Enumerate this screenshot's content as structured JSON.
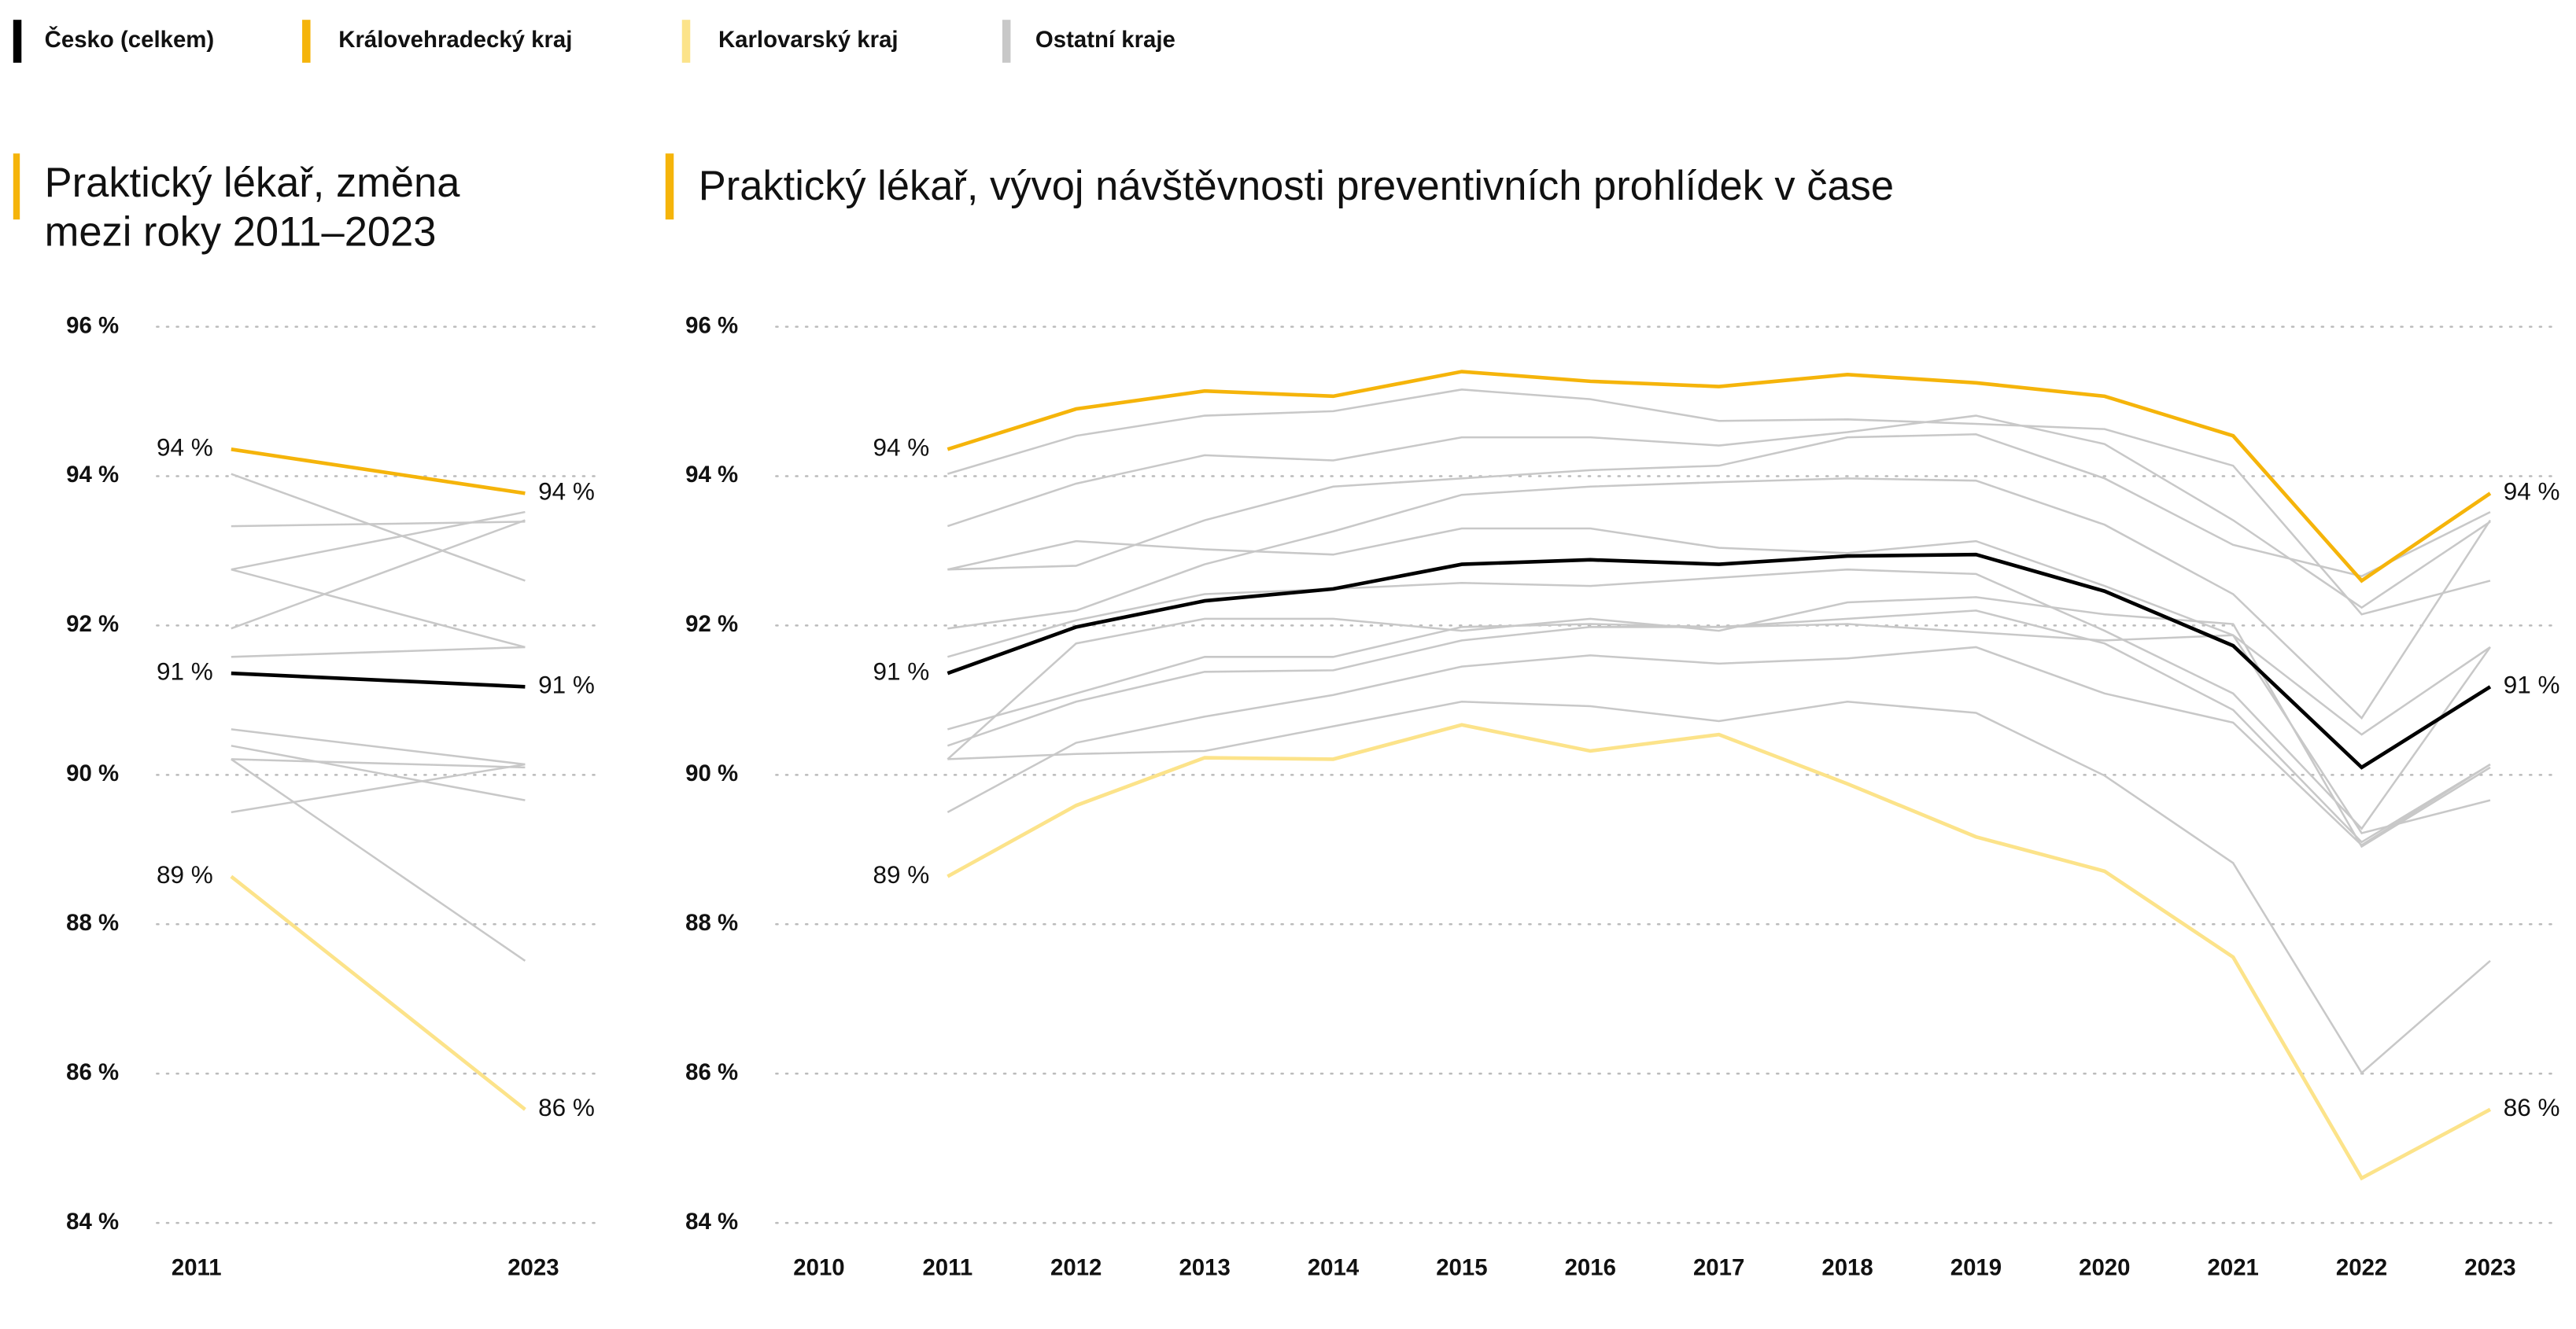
{
  "chart_data": [
    {
      "type": "slope",
      "title": "Praktický lékař, změna mezi roky 2011–2023",
      "categories": [
        "2011",
        "2023"
      ],
      "ylim": [
        84,
        96
      ],
      "yticks": [
        {
          "value": 84,
          "label": "84 %"
        },
        {
          "value": 86,
          "label": "86 %"
        },
        {
          "value": 88,
          "label": "88 %"
        },
        {
          "value": 90,
          "label": "90 %"
        },
        {
          "value": 92,
          "label": "92 %"
        },
        {
          "value": 94,
          "label": "94 %"
        },
        {
          "value": 96,
          "label": "96 %"
        }
      ],
      "grid": true,
      "other_series": {
        "name": "Ostatní kraje",
        "color": "#c8c8c8",
        "lines": [
          [
            94.03,
            92.6
          ],
          [
            93.33,
            93.39
          ],
          [
            92.75,
            93.52
          ],
          [
            92.75,
            91.71
          ],
          [
            91.96,
            93.41
          ],
          [
            91.58,
            91.71
          ],
          [
            90.21,
            90.1
          ],
          [
            90.61,
            90.14
          ],
          [
            90.39,
            89.66
          ],
          [
            90.21,
            87.51
          ],
          [
            89.5,
            90.14
          ]
        ]
      },
      "series": [
        {
          "name": "Karlovarský kraj",
          "color": "#fce38a",
          "values": [
            88.64,
            85.52
          ],
          "value_labels": [
            "89 %",
            "86 %"
          ]
        },
        {
          "name": "Královehradecký kraj",
          "color": "#f5b40a",
          "values": [
            94.36,
            93.77
          ],
          "value_labels": [
            "94 %",
            "94 %"
          ]
        },
        {
          "name": "Česko (celkem)",
          "color": "#000000",
          "values": [
            91.36,
            91.18
          ],
          "value_labels": [
            "91 %",
            "91 %"
          ]
        }
      ]
    },
    {
      "type": "line",
      "title": "Praktický lékař, vývoj návštěvnosti preventivních prohlídek v čase",
      "categories": [
        "2010",
        "2011",
        "2012",
        "2013",
        "2014",
        "2015",
        "2016",
        "2017",
        "2018",
        "2019",
        "2020",
        "2021",
        "2022",
        "2023"
      ],
      "ylim": [
        84,
        96
      ],
      "yticks": [
        {
          "value": 84,
          "label": "84 %"
        },
        {
          "value": 86,
          "label": "86 %"
        },
        {
          "value": 88,
          "label": "88 %"
        },
        {
          "value": 90,
          "label": "90 %"
        },
        {
          "value": 92,
          "label": "92 %"
        },
        {
          "value": 94,
          "label": "94 %"
        },
        {
          "value": 96,
          "label": "96 %"
        }
      ],
      "grid": true,
      "other_series": {
        "name": "Ostatní kraje",
        "color": "#c8c8c8",
        "lines": [
          [
            null,
            94.03,
            94.54,
            94.81,
            94.87,
            95.16,
            95.03,
            94.74,
            94.76,
            94.7,
            94.63,
            94.14,
            92.15,
            92.6
          ],
          [
            null,
            93.33,
            93.9,
            94.28,
            94.21,
            94.52,
            94.52,
            94.41,
            94.59,
            94.81,
            94.43,
            93.41,
            92.24,
            93.39
          ],
          [
            null,
            92.75,
            92.8,
            93.41,
            93.86,
            93.97,
            94.08,
            94.14,
            94.52,
            94.56,
            93.97,
            93.08,
            92.66,
            93.52
          ],
          [
            null,
            92.75,
            93.13,
            93.02,
            92.95,
            93.3,
            93.3,
            93.04,
            92.97,
            93.13,
            92.53,
            91.87,
            90.54,
            91.71
          ],
          [
            null,
            91.96,
            92.2,
            92.82,
            93.26,
            93.75,
            93.86,
            93.92,
            93.97,
            93.94,
            93.35,
            92.42,
            90.76,
            93.41
          ],
          [
            null,
            91.58,
            92.07,
            92.42,
            92.49,
            92.57,
            92.53,
            92.64,
            92.75,
            92.69,
            91.93,
            91.09,
            89.28,
            91.71
          ],
          [
            null,
            90.21,
            91.76,
            92.09,
            92.09,
            91.93,
            92.09,
            91.93,
            92.31,
            92.38,
            92.15,
            92.02,
            89.04,
            90.1
          ],
          [
            null,
            90.61,
            91.09,
            91.58,
            91.58,
            91.98,
            92.02,
            91.98,
            92.09,
            92.2,
            91.76,
            90.87,
            89.1,
            90.14
          ],
          [
            null,
            90.39,
            90.98,
            91.38,
            91.4,
            91.8,
            91.98,
            91.98,
            92.02,
            91.91,
            91.8,
            91.87,
            89.22,
            89.66
          ],
          [
            null,
            90.21,
            90.28,
            90.32,
            90.65,
            90.98,
            90.92,
            90.72,
            90.98,
            90.83,
            89.99,
            88.82,
            86.01,
            87.51
          ],
          [
            null,
            89.5,
            90.43,
            90.78,
            91.07,
            91.45,
            91.6,
            91.49,
            91.56,
            91.71,
            91.09,
            90.7,
            89.06,
            90.14
          ]
        ]
      },
      "series": [
        {
          "name": "Karlovarský kraj",
          "color": "#fce38a",
          "values": [
            null,
            88.64,
            89.59,
            90.23,
            90.21,
            90.67,
            90.32,
            90.54,
            89.88,
            89.17,
            88.71,
            87.56,
            84.6,
            85.52
          ],
          "value_labels": [
            null,
            "89 %",
            null,
            null,
            null,
            null,
            null,
            null,
            null,
            null,
            null,
            null,
            null,
            "86 %"
          ]
        },
        {
          "name": "Královehradecký kraj",
          "color": "#f5b40a",
          "values": [
            null,
            94.36,
            94.9,
            95.14,
            95.07,
            95.4,
            95.27,
            95.2,
            95.36,
            95.25,
            95.07,
            94.54,
            92.6,
            93.77
          ],
          "value_labels": [
            null,
            "94 %",
            null,
            null,
            null,
            null,
            null,
            null,
            null,
            null,
            null,
            null,
            null,
            "94 %"
          ]
        },
        {
          "name": "Česko (celkem)",
          "color": "#000000",
          "values": [
            null,
            91.36,
            91.98,
            92.33,
            92.49,
            92.82,
            92.88,
            92.82,
            92.93,
            92.95,
            92.46,
            91.73,
            90.1,
            91.18
          ],
          "value_labels": [
            null,
            "91 %",
            null,
            null,
            null,
            null,
            null,
            null,
            null,
            null,
            null,
            null,
            null,
            "91 %"
          ]
        }
      ]
    }
  ]
}
